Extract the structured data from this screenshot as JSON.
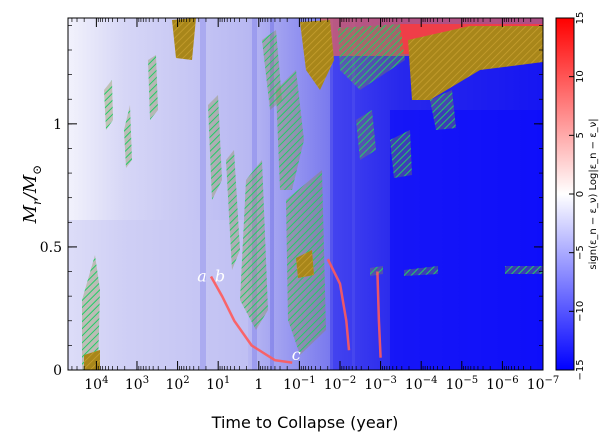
{
  "chart_data": {
    "type": "heatmap",
    "x_axis": {
      "label": "Time to Collapse (year)",
      "scale": "log",
      "reversed": true,
      "range": [
        50000,
        1e-07
      ],
      "ticks": [
        {
          "value": 10000,
          "label": "10",
          "exp": "4"
        },
        {
          "value": 1000,
          "label": "10",
          "exp": "3"
        },
        {
          "value": 100,
          "label": "10",
          "exp": "2"
        },
        {
          "value": 10,
          "label": "10",
          "exp": "1"
        },
        {
          "value": 1,
          "label": "1",
          "exp": ""
        },
        {
          "value": 0.1,
          "label": "10",
          "exp": "−1"
        },
        {
          "value": 0.01,
          "label": "10",
          "exp": "−2"
        },
        {
          "value": 0.001,
          "label": "10",
          "exp": "−3"
        },
        {
          "value": 0.0001,
          "label": "10",
          "exp": "−4"
        },
        {
          "value": 1e-05,
          "label": "10",
          "exp": "−5"
        },
        {
          "value": 1e-06,
          "label": "10",
          "exp": "−6"
        },
        {
          "value": 1e-07,
          "label": "10",
          "exp": "−7"
        }
      ]
    },
    "y_axis": {
      "label_main": "M",
      "label_sub": "r",
      "label_sep": "/M",
      "label_sun": "⊙",
      "range": [
        0,
        1.43
      ],
      "ticks": [
        {
          "value": 0,
          "label": "0"
        },
        {
          "value": 0.5,
          "label": "0.5"
        },
        {
          "value": 1,
          "label": "1"
        }
      ]
    },
    "colorbar": {
      "label": "sign(ε_n − ε_ν) Log|ε_n − ε_ν|",
      "range": [
        -15,
        15
      ],
      "colors": {
        "low": "#0000ff",
        "mid": "#ffffff",
        "high": "#ff0000"
      },
      "ticks": [
        {
          "value": -15,
          "label": "−15"
        },
        {
          "value": -10,
          "label": "−10"
        },
        {
          "value": -5,
          "label": "−5"
        },
        {
          "value": 0,
          "label": "0"
        },
        {
          "value": 5,
          "label": "5"
        },
        {
          "value": 10,
          "label": "10"
        },
        {
          "value": 15,
          "label": "15"
        }
      ]
    },
    "convective_hatch_colors": {
      "green": "#22bb55",
      "olive": "#aa8a1a"
    },
    "annotations": [
      {
        "text": "a",
        "t": 25,
        "m": 0.36
      },
      {
        "text": "b",
        "t": 9,
        "m": 0.36
      },
      {
        "text": "c",
        "t": 0.12,
        "m": 0.04
      }
    ],
    "burning_fronts": [
      {
        "name": "carbon-shell-1",
        "points": [
          [
            15,
            0.38
          ],
          [
            8,
            0.3
          ],
          [
            4,
            0.2
          ],
          [
            1.5,
            0.1
          ],
          [
            0.4,
            0.04
          ],
          [
            0.15,
            0.03
          ]
        ]
      },
      {
        "name": "late-shell",
        "points": [
          [
            0.02,
            0.45
          ],
          [
            0.01,
            0.35
          ],
          [
            0.007,
            0.2
          ],
          [
            0.006,
            0.08
          ]
        ]
      },
      {
        "name": "si-shell",
        "points": [
          [
            0.0012,
            0.4
          ],
          [
            0.0011,
            0.2
          ],
          [
            0.001,
            0.05
          ]
        ]
      }
    ]
  }
}
